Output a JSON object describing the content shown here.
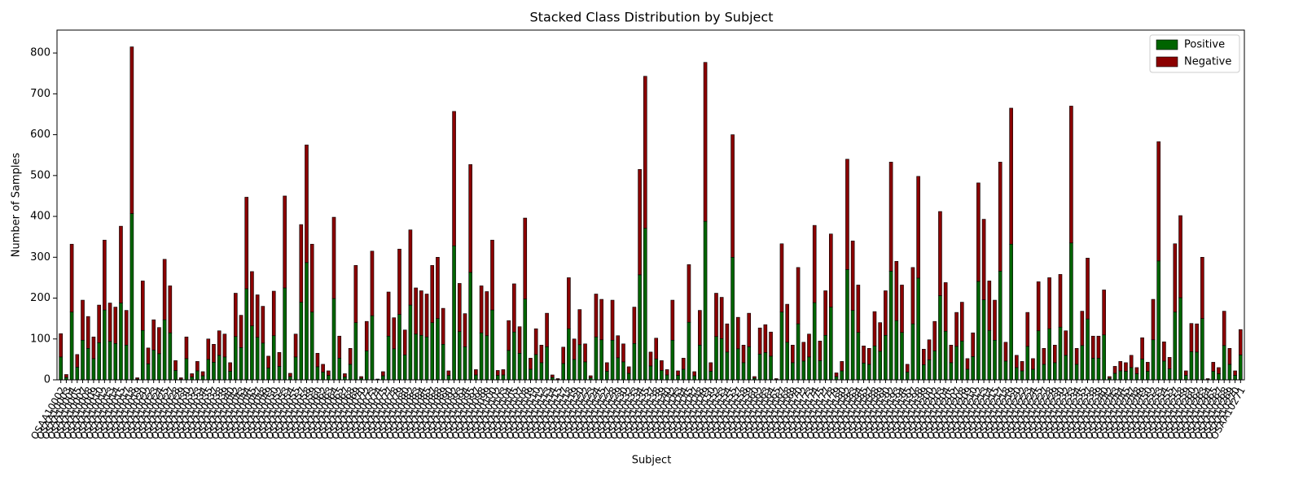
{
  "chart_data": {
    "type": "stacked_bar",
    "title": "Stacked Class Distribution by Subject",
    "xlabel": "Subject",
    "ylabel": "Number of Samples",
    "categories": [
      "OSAA10002",
      "OSAA10003",
      "OSAA10004",
      "OSAA10005",
      "OSAA10007",
      "OSAA10008",
      "OSAA10009",
      "OSAA10010",
      "OSAA10012",
      "OSAA10013",
      "OSAA10014",
      "OSAA10015",
      "OSAA10017",
      "OSAA10018",
      "OSAA10019",
      "OSAA10020",
      "OSAA10022",
      "OSAA10023",
      "OSAA10024",
      "OSAA10025",
      "OSAA10027",
      "OSAA10028",
      "OSAA10029",
      "OSAA10030",
      "OSAA10032",
      "OSAA10033",
      "OSAA10034",
      "OSAA10035",
      "OSAA10037",
      "OSAA10038",
      "OSAA10039",
      "OSAA10040",
      "OSAA10042",
      "OSAA10043",
      "OSAA10044",
      "OSAA10045",
      "OSAA10047",
      "OSAA10048",
      "OSAA10049",
      "OSAA10050",
      "OSAA10052",
      "OSAA10053",
      "OSAA10054",
      "OSAA10055",
      "OSAA10057",
      "OSAA10058",
      "OSAA10059",
      "OSAA10060",
      "OSAA10062",
      "OSAA10063",
      "OSAA10064",
      "OSAA10065",
      "OSAA10067",
      "OSAA10068",
      "OSAA10069",
      "OSAA10070",
      "OSAA10072",
      "OSAA10073",
      "OSAA10074",
      "OSAA10075",
      "OSAA10077",
      "OSAA10078",
      "OSAA10079",
      "OSAA10080",
      "OSAA10082",
      "OSAA10083",
      "OSAA10084",
      "OSAA10085",
      "OSAA10087",
      "OSAA10088",
      "OSAA10089",
      "OSAA10090",
      "OSAA10092",
      "OSAA10093",
      "OSAA10094",
      "OSAA10095",
      "OSAA10097",
      "OSAA10098",
      "OSAA10099",
      "OSAA10100",
      "OSAA10102",
      "OSAA10103",
      "OSAA10104",
      "OSAA10105",
      "OSAA10107",
      "OSAA10108",
      "OSAA10109",
      "OSAA10110",
      "OSAA10112",
      "OSAA10113",
      "OSAA10114",
      "OSAA10115",
      "OSAA10117",
      "OSAA10118",
      "OSAA10119",
      "OSAA10120",
      "OSAA10122",
      "OSAA10123",
      "OSAA10124",
      "OSAA10125",
      "OSAA10127",
      "OSAA10128",
      "OSAA10129",
      "OSAA10130",
      "OSAA10132",
      "OSAA10133",
      "OSAA10134",
      "OSAA10135",
      "OSAA10137",
      "OSAA10138",
      "OSAA10139",
      "OSAA10140",
      "OSAA10142",
      "OSAA10143",
      "OSAA10144",
      "OSAA10145",
      "OSAA10147",
      "OSAA10148",
      "OSAA10149",
      "OSAA10150",
      "OSAA10152",
      "OSAA10153",
      "OSAA10154",
      "OSAA10155",
      "OSAA10157",
      "OSAA10158",
      "OSAA10159",
      "OSAA10160",
      "OSAA10162",
      "OSAA10163",
      "OSAA10164",
      "OSAA10165",
      "OSAA10167",
      "OSAA10168",
      "OSAA10169",
      "OSAA10170",
      "OSAA10172",
      "OSAA10173",
      "OSAA10174",
      "OSAA10175",
      "OSAA10177",
      "OSAA10178",
      "OSAA10179",
      "OSAA10180",
      "OSAA10182",
      "OSAA10183",
      "OSAA10184",
      "OSAA10185",
      "OSAA10187",
      "OSAA10188",
      "OSAA10189",
      "OSAA10190",
      "OSAA10192",
      "OSAA10193",
      "OSAA10194",
      "OSAA10195",
      "OSAA10197",
      "OSAA10198",
      "OSAA10199",
      "OSAA10200",
      "OSAA10202",
      "OSAA10203",
      "OSAA10204",
      "OSAA10205",
      "OSAA10207",
      "OSAA10208",
      "OSAA10209",
      "OSAA10210",
      "OSAA10212",
      "OSAA10213",
      "OSAA10214",
      "OSAA10215",
      "OSAA10217",
      "OSAA10218",
      "OSAA10219",
      "OSAA10220",
      "OSAA10222",
      "OSAA10223",
      "OSAA10224",
      "OSAA10225",
      "OSAA10227",
      "OSAA10228",
      "OSAA10229",
      "OSAA10230",
      "OSAA10232",
      "OSAA10233",
      "OSAA10234",
      "OSAA10235",
      "OSAA10237",
      "OSAA10238",
      "OSAA10239",
      "OSAA10240",
      "OSAA10242",
      "OSAA10243",
      "OSAA10244",
      "OSAA10245",
      "OSAA10247",
      "OSAA10248",
      "OSAA10249",
      "OSAA10250",
      "OSAA10252",
      "OSAA10253",
      "OSAA10254",
      "OSAA10255",
      "OSAA10257",
      "OSAA10258",
      "OSAA10259",
      "OSAA10260",
      "OSAA10262",
      "OSAA10263",
      "OSAA10264",
      "OSAA10265",
      "OSAA10267",
      "OSAA10268",
      "OSAA10269",
      "OSAA10270",
      "OSAA10271"
    ],
    "series": [
      {
        "name": "Positive",
        "color": "#006400",
        "values": [
          56,
          6,
          166,
          31,
          97,
          77,
          52,
          91,
          171,
          94,
          89,
          188,
          85,
          407,
          2,
          121,
          39,
          73,
          64,
          147,
          115,
          23,
          2,
          52,
          7,
          22,
          10,
          50,
          43,
          60,
          56,
          21,
          106,
          79,
          223,
          132,
          104,
          90,
          29,
          108,
          33,
          225,
          8,
          56,
          190,
          287,
          166,
          32,
          19,
          11,
          199,
          53,
          7,
          38,
          140,
          4,
          71,
          157,
          1,
          10,
          107,
          76,
          160,
          61,
          183,
          112,
          109,
          105,
          140,
          150,
          87,
          11,
          328,
          118,
          81,
          263,
          12,
          115,
          108,
          171,
          11,
          12,
          72,
          117,
          65,
          198,
          26,
          62,
          42,
          81,
          6,
          1,
          40,
          125,
          50,
          86,
          44,
          5,
          105,
          98,
          21,
          97,
          54,
          44,
          16,
          89,
          257,
          371,
          34,
          51,
          23,
          12,
          97,
          11,
          26,
          141,
          10,
          85,
          388,
          21,
          106,
          101,
          68,
          300,
          76,
          42,
          81,
          4,
          63,
          67,
          58,
          1,
          166,
          92,
          42,
          137,
          46,
          56,
          189,
          47,
          109,
          178,
          8,
          22,
          270,
          170,
          116,
          41,
          38,
          83,
          70,
          109,
          266,
          145,
          116,
          19,
          137,
          249,
          37,
          49,
          71,
          206,
          119,
          42,
          82,
          95,
          26,
          57,
          241,
          196,
          121,
          97,
          266,
          46,
          332,
          30,
          22,
          82,
          26,
          120,
          38,
          125,
          42,
          129,
          60,
          335,
          38,
          84,
          149,
          53,
          53,
          110,
          4,
          16,
          22,
          21,
          30,
          15,
          51,
          21,
          98,
          291,
          46,
          27,
          166,
          201,
          11,
          69,
          68,
          150,
          1,
          21,
          15,
          84,
          38,
          11,
          61
        ]
      },
      {
        "name": "Negative",
        "color": "#8b0000",
        "values": [
          57,
          7,
          166,
          31,
          98,
          78,
          53,
          92,
          171,
          94,
          89,
          188,
          85,
          408,
          3,
          121,
          39,
          74,
          64,
          148,
          115,
          24,
          3,
          53,
          8,
          23,
          10,
          50,
          44,
          60,
          56,
          21,
          106,
          79,
          224,
          133,
          104,
          90,
          29,
          109,
          34,
          225,
          8,
          56,
          190,
          288,
          166,
          33,
          19,
          11,
          199,
          54,
          8,
          39,
          140,
          4,
          72,
          158,
          1,
          10,
          108,
          76,
          160,
          61,
          184,
          113,
          109,
          105,
          140,
          150,
          88,
          11,
          329,
          118,
          81,
          264,
          13,
          115,
          108,
          171,
          12,
          13,
          73,
          118,
          65,
          198,
          27,
          63,
          43,
          82,
          6,
          2,
          40,
          125,
          50,
          86,
          44,
          5,
          105,
          99,
          21,
          98,
          54,
          44,
          16,
          89,
          258,
          372,
          34,
          51,
          24,
          13,
          98,
          11,
          27,
          141,
          10,
          85,
          389,
          21,
          106,
          101,
          69,
          300,
          77,
          43,
          82,
          4,
          64,
          68,
          59,
          2,
          167,
          93,
          43,
          138,
          46,
          56,
          189,
          48,
          109,
          179,
          9,
          23,
          270,
          170,
          116,
          42,
          39,
          84,
          70,
          109,
          267,
          145,
          116,
          19,
          138,
          249,
          38,
          49,
          72,
          206,
          119,
          43,
          83,
          95,
          26,
          58,
          241,
          197,
          121,
          98,
          267,
          46,
          333,
          30,
          23,
          83,
          26,
          120,
          39,
          125,
          43,
          129,
          60,
          335,
          39,
          84,
          149,
          54,
          54,
          110,
          4,
          17,
          23,
          21,
          30,
          15,
          52,
          22,
          99,
          292,
          47,
          28,
          167,
          201,
          11,
          69,
          69,
          150,
          2,
          22,
          15,
          84,
          39,
          11,
          62
        ]
      }
    ],
    "ylim": [
      0,
      856
    ],
    "yticks": [
      0,
      100,
      200,
      300,
      400,
      500,
      600,
      700,
      800
    ],
    "legend": "upper right",
    "grid": false
  }
}
